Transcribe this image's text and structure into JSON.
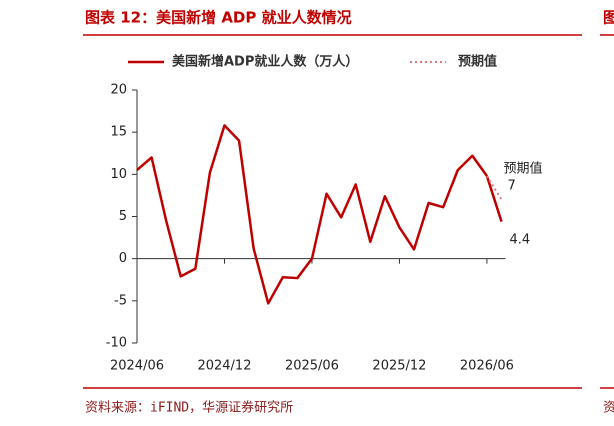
{
  "chart_data": {
    "type": "line",
    "title": "图表 12：美国新增 ADP 就业人数情况",
    "source": "资料来源：iFIND，华源证券研究所",
    "categories": [
      "2024/06",
      null,
      null,
      null,
      null,
      null,
      "2024/12",
      null,
      null,
      null,
      null,
      null,
      "2025/06",
      null,
      null,
      null,
      null,
      null,
      "2025/12",
      null,
      null,
      null,
      null,
      null,
      "2026/06",
      null
    ],
    "series": [
      {
        "name": "美国新增ADP就业人数（万人）",
        "color": "#c00000",
        "style": "solid",
        "values": [
          10.5,
          12.0,
          4.5,
          -2.1,
          -1.2,
          10.2,
          15.8,
          14.0,
          1.2,
          -5.3,
          -2.2,
          -2.3,
          0,
          7.7,
          4.9,
          8.8,
          2.0,
          7.4,
          3.7,
          1.1,
          6.6,
          6.1,
          10.5,
          12.2,
          9.8,
          4.4
        ]
      },
      {
        "name": "预期值",
        "color": "#e07b7b",
        "style": "dotted",
        "values": [
          null,
          null,
          null,
          null,
          null,
          null,
          null,
          null,
          null,
          null,
          null,
          null,
          null,
          null,
          null,
          null,
          null,
          null,
          null,
          null,
          null,
          null,
          null,
          null,
          9.8,
          7
        ]
      }
    ],
    "ylim": [
      -10,
      20
    ],
    "yticks": [
      -10,
      -5,
      0,
      5,
      10,
      15,
      20
    ],
    "grid": false
  },
  "next_panel": {
    "title_fragment": "图",
    "source_fragment": "资"
  }
}
